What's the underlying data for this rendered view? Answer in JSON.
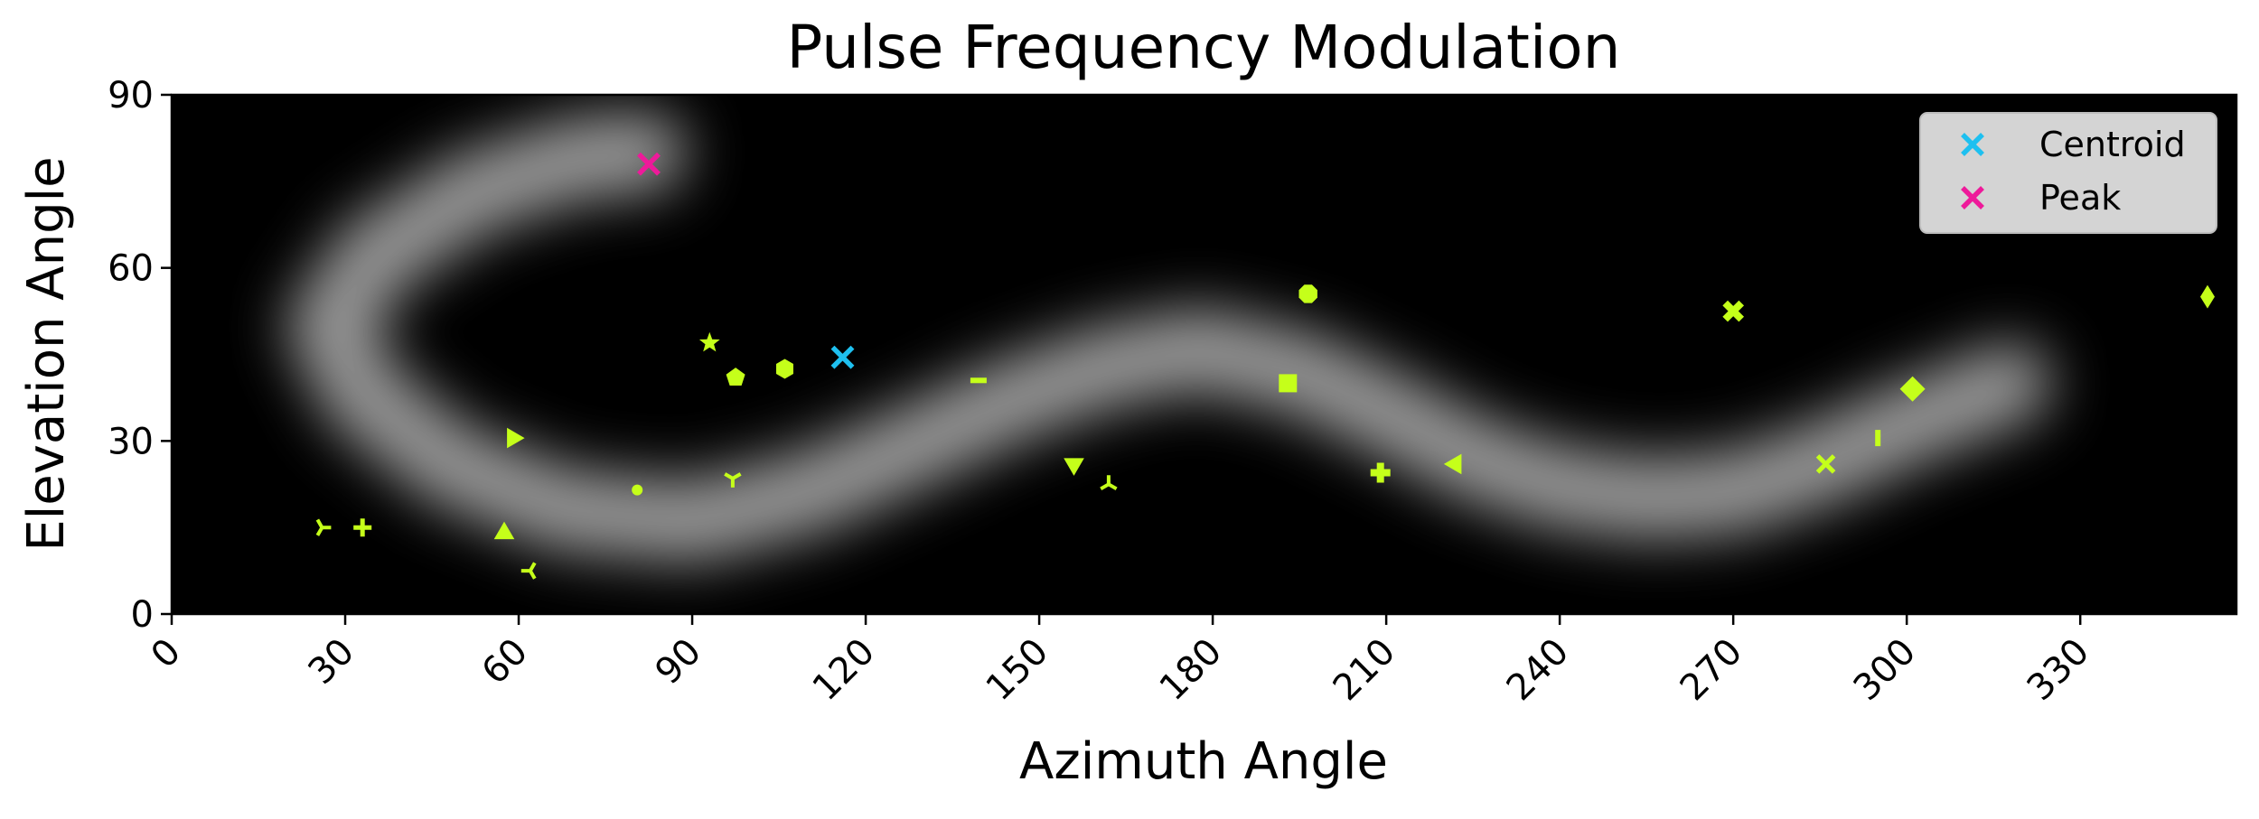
{
  "chart_data": {
    "type": "scatter",
    "title": "Pulse Frequency Modulation",
    "xlabel": "Azimuth Angle",
    "ylabel": "Elevation Angle",
    "xlim": [
      0,
      357
    ],
    "ylim": [
      0,
      90
    ],
    "xticks": [
      0,
      30,
      60,
      90,
      120,
      150,
      180,
      210,
      240,
      270,
      300,
      330
    ],
    "yticks": [
      0,
      30,
      60,
      90
    ],
    "xtick_labels": [
      "0",
      "30",
      "60",
      "90",
      "120",
      "150",
      "180",
      "210",
      "240",
      "270",
      "300",
      "330"
    ],
    "ytick_labels": [
      "0",
      "30",
      "60",
      "90"
    ],
    "grid": false,
    "legend_position": "top-right",
    "background": {
      "type": "heatmap",
      "colormap": "gray",
      "description_points": [
        [
          82,
          80
        ],
        [
          70,
          79
        ],
        [
          52,
          73
        ],
        [
          35,
          62
        ],
        [
          27,
          50
        ],
        [
          33,
          38
        ],
        [
          48,
          26
        ],
        [
          68,
          18
        ],
        [
          90,
          16
        ],
        [
          110,
          21
        ],
        [
          128,
          29
        ],
        [
          145,
          37
        ],
        [
          162,
          43
        ],
        [
          178,
          46
        ],
        [
          195,
          42
        ],
        [
          210,
          35
        ],
        [
          225,
          27
        ],
        [
          240,
          22
        ],
        [
          255,
          20
        ],
        [
          270,
          21
        ],
        [
          285,
          26
        ],
        [
          300,
          33
        ],
        [
          318,
          40
        ]
      ]
    },
    "points": [
      {
        "x": 26,
        "y": 15,
        "marker": "tri_right"
      },
      {
        "x": 33,
        "y": 15,
        "marker": "plus"
      },
      {
        "x": 57.5,
        "y": 14,
        "marker": "triangle_up"
      },
      {
        "x": 59,
        "y": 30.5,
        "marker": "triangle_right"
      },
      {
        "x": 62,
        "y": 7.5,
        "marker": "tri_left"
      },
      {
        "x": 80.5,
        "y": 21.5,
        "marker": "point"
      },
      {
        "x": 93,
        "y": 47,
        "marker": "star"
      },
      {
        "x": 97,
        "y": 23.5,
        "marker": "tri_down"
      },
      {
        "x": 97.5,
        "y": 41,
        "marker": "pentagon"
      },
      {
        "x": 106,
        "y": 42.5,
        "marker": "hexagon"
      },
      {
        "x": 139.5,
        "y": 40.5,
        "marker": "hline"
      },
      {
        "x": 156,
        "y": 26,
        "marker": "triangle_down"
      },
      {
        "x": 162,
        "y": 22.5,
        "marker": "tri_up"
      },
      {
        "x": 193,
        "y": 40,
        "marker": "square"
      },
      {
        "x": 196.5,
        "y": 55.5,
        "marker": "octagon"
      },
      {
        "x": 209,
        "y": 24.5,
        "marker": "plus_filled"
      },
      {
        "x": 222,
        "y": 26,
        "marker": "triangle_left"
      },
      {
        "x": 270,
        "y": 52.5,
        "marker": "x_filled"
      },
      {
        "x": 286,
        "y": 26,
        "marker": "x"
      },
      {
        "x": 295,
        "y": 30.5,
        "marker": "vline"
      },
      {
        "x": 301,
        "y": 39,
        "marker": "diamond"
      },
      {
        "x": 352,
        "y": 55,
        "marker": "thin_diamond"
      }
    ],
    "points_color": "#c5ff1a",
    "series": [
      {
        "name": "Centroid",
        "x": 116,
        "y": 44.5,
        "marker": "x",
        "color": "#1ec0f0"
      },
      {
        "name": "Peak",
        "x": 82.5,
        "y": 78,
        "marker": "x",
        "color": "#ee1a9a"
      }
    ]
  }
}
